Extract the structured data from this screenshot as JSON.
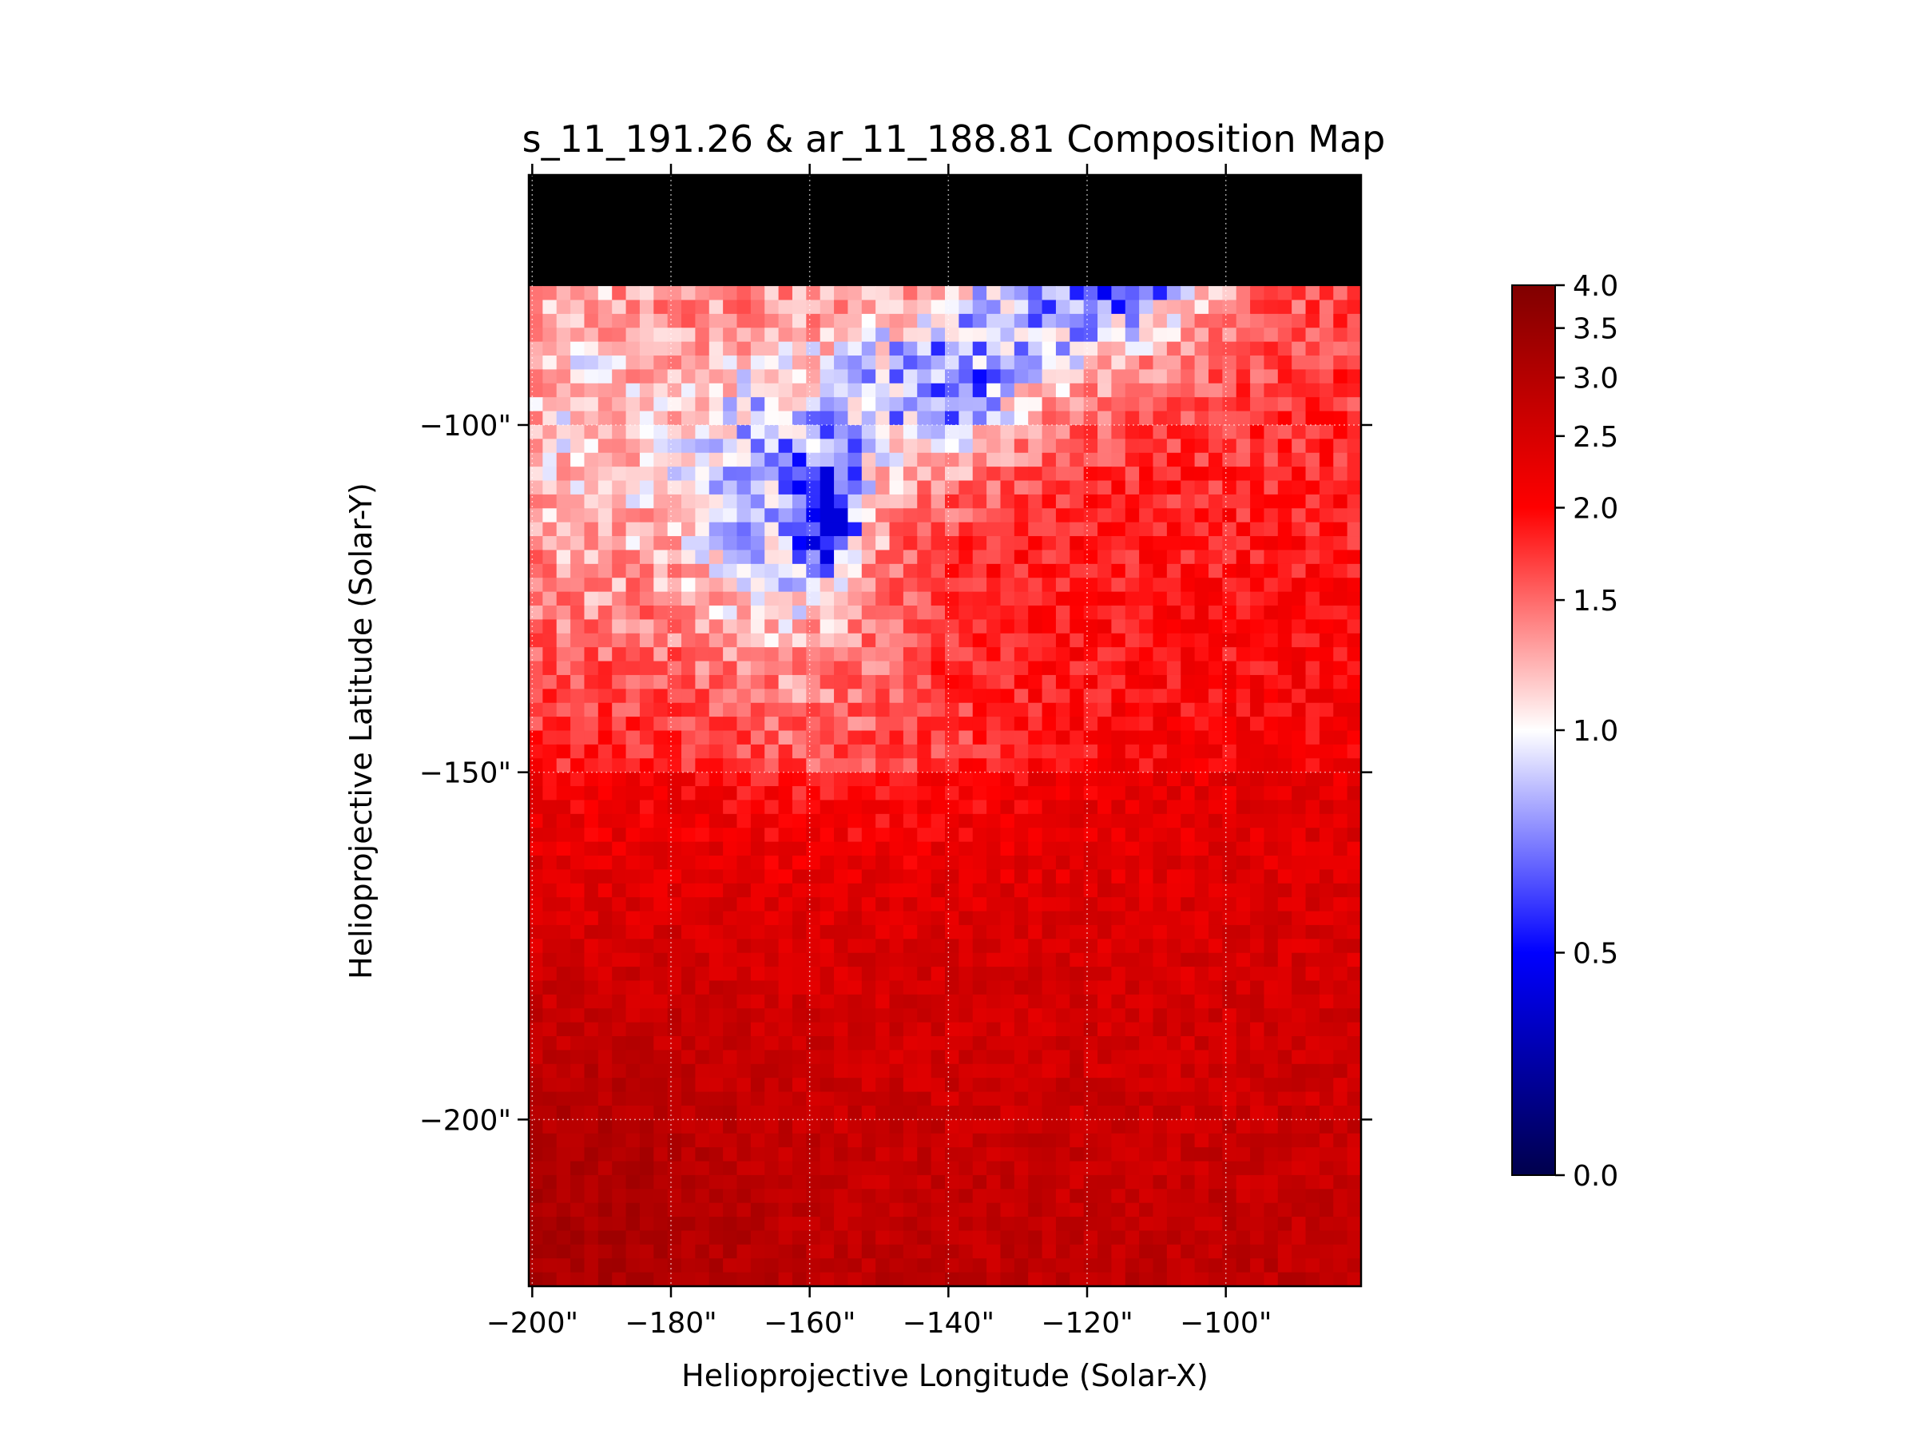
{
  "chart_data": {
    "type": "heatmap",
    "title": "s_11_191.26 & ar_11_188.81 Composition Map",
    "xlabel": "Helioprojective Longitude (Solar-X)",
    "ylabel": "Helioprojective Latitude (Solar-Y)",
    "x_ticks": [
      {
        "value": -200,
        "label": "−200\""
      },
      {
        "value": -180,
        "label": "−180\""
      },
      {
        "value": -160,
        "label": "−160\""
      },
      {
        "value": -140,
        "label": "−140\""
      },
      {
        "value": -120,
        "label": "−120\""
      },
      {
        "value": -100,
        "label": "−100\""
      }
    ],
    "y_ticks": [
      {
        "value": -100,
        "label": "−100\""
      },
      {
        "value": -150,
        "label": "−150\""
      },
      {
        "value": -200,
        "label": "−200\""
      }
    ],
    "xlim": [
      -200.5,
      -80.5
    ],
    "ylim": [
      -224,
      -64
    ],
    "grid": true,
    "colormap": "seismic",
    "colorbar": {
      "range": [
        0.0,
        4.0
      ],
      "ticks": [
        {
          "value": 4.0,
          "label": "4.0"
        },
        {
          "value": 3.5,
          "label": "3.5"
        },
        {
          "value": 3.0,
          "label": "3.0"
        },
        {
          "value": 2.5,
          "label": "2.5"
        },
        {
          "value": 2.0,
          "label": "2.0"
        },
        {
          "value": 1.5,
          "label": "1.5"
        },
        {
          "value": 1.0,
          "label": "1.0"
        },
        {
          "value": 0.5,
          "label": "0.5"
        },
        {
          "value": 0.0,
          "label": "0.0"
        }
      ]
    },
    "grid_size": {
      "cols": 60,
      "rows": 80
    },
    "features": [
      {
        "description_value": "low ratio region (blue)",
        "x": -158,
        "y": -115,
        "min_value": 0.6
      },
      {
        "description_value": "near-unity band",
        "x": -140,
        "y": -95,
        "value": 1.0
      },
      {
        "description_value": "near-unity band upper right",
        "x": -115,
        "y": -80,
        "value": 1.0
      },
      {
        "description_value": "background",
        "value_range": [
          1.5,
          3.2
        ]
      }
    ]
  }
}
